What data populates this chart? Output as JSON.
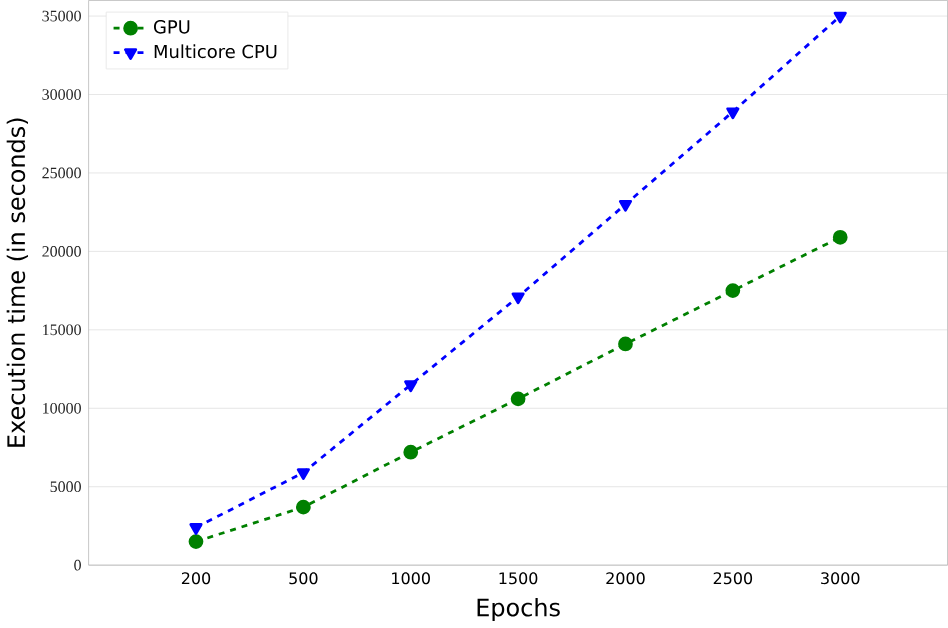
{
  "chart_data": {
    "type": "line",
    "xlabel": "Epochs",
    "ylabel": "Execution time (in seconds)",
    "categories": [
      "200",
      "500",
      "1000",
      "1500",
      "2000",
      "2500",
      "3000"
    ],
    "series": [
      {
        "name": "GPU",
        "color": "#008000",
        "marker": "circle",
        "line_style": "dashed",
        "values": [
          1500,
          3700,
          7200,
          10600,
          14100,
          17500,
          20900
        ]
      },
      {
        "name": "Multicore CPU",
        "color": "#0000ff",
        "marker": "triangle",
        "line_style": "dashed",
        "values": [
          2400,
          5900,
          11500,
          17100,
          23000,
          28900,
          35000
        ]
      }
    ],
    "ylim": [
      0,
      36000
    ],
    "yticks": [
      0,
      5000,
      10000,
      15000,
      20000,
      25000,
      30000,
      35000
    ],
    "grid": "y",
    "legend": "top left"
  }
}
